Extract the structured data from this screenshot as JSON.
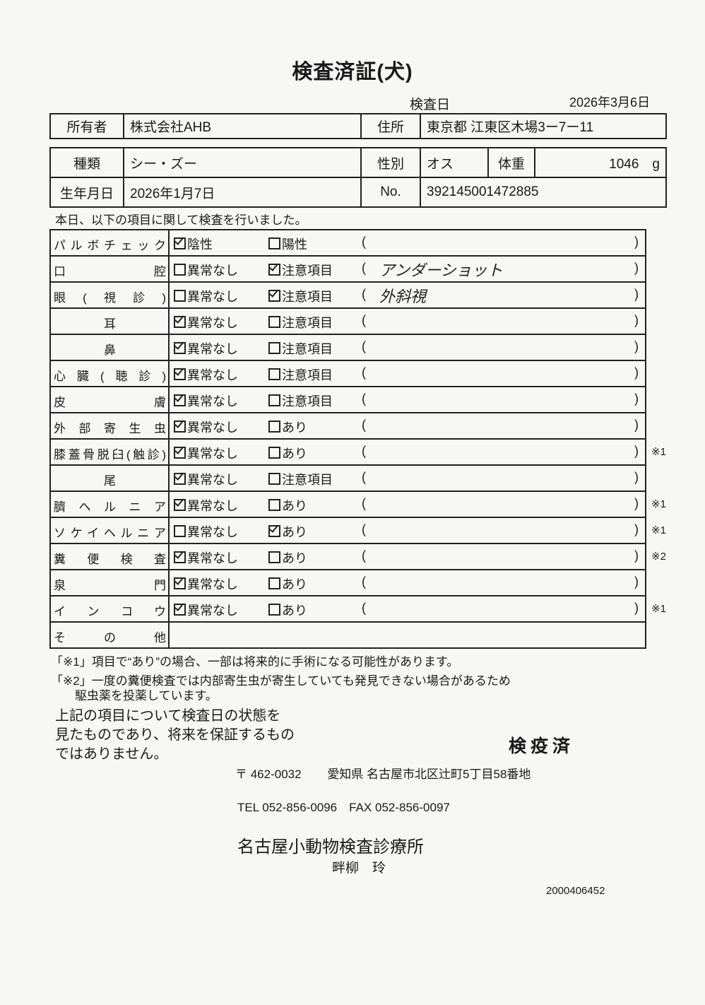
{
  "title": "検査済証(犬)",
  "exam_date_label": "検査日",
  "exam_date": "2026年3月6日",
  "owner": {
    "label": "所有者",
    "value": "株式会社AHB",
    "address_label": "住所",
    "address": "東京都 江東区木場3ー7ー11"
  },
  "pet": {
    "breed_label": "種類",
    "breed": "シー・ズー",
    "sex_label": "性別",
    "sex": "オス",
    "weight_label": "体重",
    "weight": "1046　g",
    "birth_label": "生年月日",
    "birth": "2026年1月7日",
    "no_label": "No.",
    "no": "392145001472885"
  },
  "intro": "本日、以下の項目に関して検査を行いました。",
  "rows": [
    {
      "label": "パルボチェック",
      "o1": "陰性",
      "c1": true,
      "o2": "陽性",
      "c2": false,
      "note": "",
      "mark": ""
    },
    {
      "label": "口腔",
      "o1": "異常なし",
      "c1": false,
      "o2": "注意項目",
      "c2": true,
      "note": "アンダーショット",
      "mark": ""
    },
    {
      "label": "眼(視診)",
      "o1": "異常なし",
      "c1": false,
      "o2": "注意項目",
      "c2": true,
      "note": "外斜視",
      "mark": ""
    },
    {
      "label": "耳",
      "center": true,
      "o1": "異常なし",
      "c1": true,
      "o2": "注意項目",
      "c2": false,
      "note": "",
      "mark": ""
    },
    {
      "label": "鼻",
      "center": true,
      "o1": "異常なし",
      "c1": true,
      "o2": "注意項目",
      "c2": false,
      "note": "",
      "mark": ""
    },
    {
      "label": "心臓(聴診)",
      "o1": "異常なし",
      "c1": true,
      "o2": "注意項目",
      "c2": false,
      "note": "",
      "mark": ""
    },
    {
      "label": "皮膚",
      "o1": "異常なし",
      "c1": true,
      "o2": "注意項目",
      "c2": false,
      "note": "",
      "mark": ""
    },
    {
      "label": "外部寄生虫",
      "o1": "異常なし",
      "c1": true,
      "o2": "あり",
      "c2": false,
      "note": "",
      "mark": ""
    },
    {
      "label": "膝蓋骨脱臼(触診)",
      "o1": "異常なし",
      "c1": true,
      "o2": "あり",
      "c2": false,
      "note": "",
      "mark": "※1"
    },
    {
      "label": "尾",
      "center": true,
      "o1": "異常なし",
      "c1": true,
      "o2": "注意項目",
      "c2": false,
      "note": "",
      "mark": ""
    },
    {
      "label": "臍ヘルニア",
      "o1": "異常なし",
      "c1": true,
      "o2": "あり",
      "c2": false,
      "note": "",
      "mark": "※1"
    },
    {
      "label": "ソケイヘルニア",
      "o1": "異常なし",
      "c1": false,
      "o2": "あり",
      "c2": true,
      "note": "",
      "mark": "※1"
    },
    {
      "label": "糞便検査",
      "o1": "異常なし",
      "c1": true,
      "o2": "あり",
      "c2": false,
      "note": "",
      "mark": "※2"
    },
    {
      "label": "泉門",
      "o1": "異常なし",
      "c1": true,
      "o2": "あり",
      "c2": false,
      "note": "",
      "mark": ""
    },
    {
      "label": "インコウ",
      "o1": "異常なし",
      "c1": true,
      "o2": "あり",
      "c2": false,
      "note": "",
      "mark": "※1"
    },
    {
      "label": "その他",
      "other": true
    }
  ],
  "paren_open": "(",
  "paren_close": ")",
  "notes": [
    "「※1」項目で“あり”の場合、一部は将来的に手術になる可能性があります。",
    "「※2」一度の糞便検査では内部寄生虫が寄生していても発見できない場合があるため",
    "　　駆虫薬を投薬しています。"
  ],
  "disclaimer": [
    "上記の項目について検査日の状態を",
    "見たものであり、将来を保証するもの",
    "ではありません。"
  ],
  "stamp": "検疫済",
  "clinic": {
    "postal": "〒 462-0032",
    "address": "愛知県 名古屋市北区辻町5丁目58番地",
    "tel": "TEL 052-856-0096　FAX 052-856-0097",
    "name": "名古屋小動物検査診療所",
    "vet": "畔柳　玲"
  },
  "doc_number": "2000406452"
}
